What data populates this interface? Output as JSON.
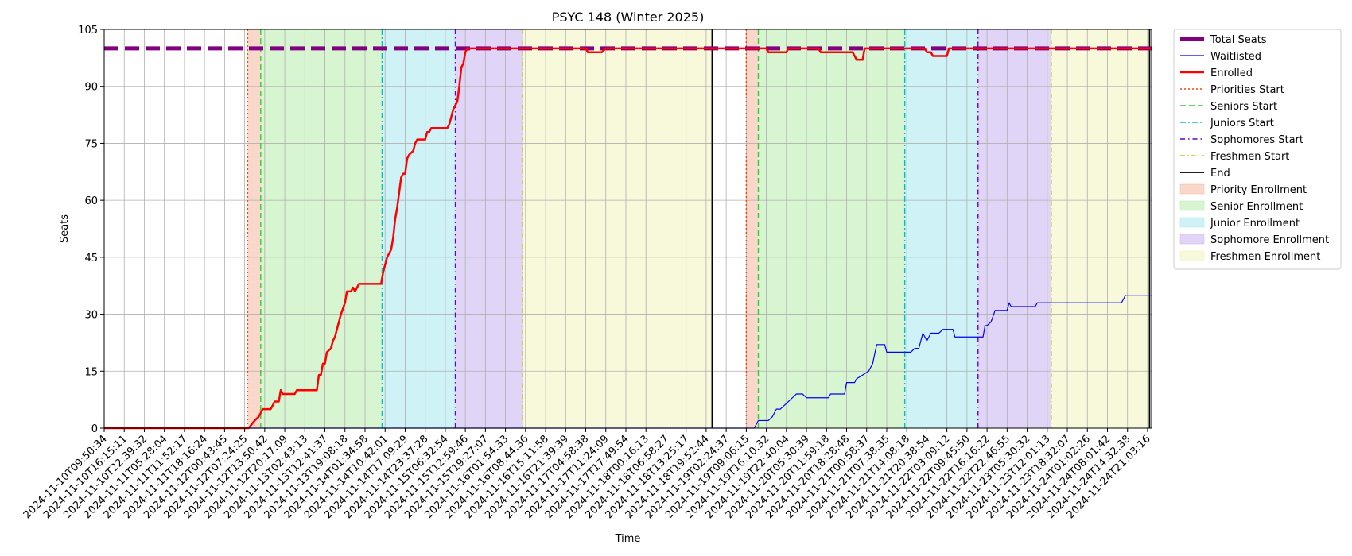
{
  "chart_data": {
    "type": "line",
    "title": "PSYC 148 (Winter 2025)",
    "xlabel": "Time",
    "ylabel": "Seats",
    "ylim": [
      0,
      105
    ],
    "y_ticks": [
      0,
      15,
      30,
      45,
      60,
      75,
      90,
      105
    ],
    "grid": true,
    "legend_position": "outside-right",
    "x_tick_labels": [
      "2024-11-10T09:50:34",
      "2024-11-10T16:15:11",
      "2024-11-10T22:39:32",
      "2024-11-11T05:28:04",
      "2024-11-11T11:52:17",
      "2024-11-11T18:16:24",
      "2024-11-12T00:43:45",
      "2024-11-12T07:24:25",
      "2024-11-12T13:50:42",
      "2024-11-12T20:17:09",
      "2024-11-13T02:43:13",
      "2024-11-13T12:41:37",
      "2024-11-13T19:08:18",
      "2024-11-14T01:34:58",
      "2024-11-14T10:42:01",
      "2024-11-14T17:09:29",
      "2024-11-14T23:37:28",
      "2024-11-15T06:32:54",
      "2024-11-15T12:59:46",
      "2024-11-15T19:27:07",
      "2024-11-16T01:54:33",
      "2024-11-16T08:44:36",
      "2024-11-16T15:11:58",
      "2024-11-16T21:39:39",
      "2024-11-17T04:58:38",
      "2024-11-17T11:24:09",
      "2024-11-17T17:49:54",
      "2024-11-18T00:16:13",
      "2024-11-18T06:58:27",
      "2024-11-18T13:25:17",
      "2024-11-18T19:52:44",
      "2024-11-19T02:24:37",
      "2024-11-19T09:06:15",
      "2024-11-19T16:10:32",
      "2024-11-19T22:40:04",
      "2024-11-20T05:30:39",
      "2024-11-20T11:59:18",
      "2024-11-20T18:28:48",
      "2024-11-21T00:58:37",
      "2024-11-21T07:38:35",
      "2024-11-21T14:08:18",
      "2024-11-21T20:38:54",
      "2024-11-22T03:09:12",
      "2024-11-22T09:45:50",
      "2024-11-22T16:16:22",
      "2024-11-22T22:46:55",
      "2024-11-23T05:30:32",
      "2024-11-23T12:01:13",
      "2024-11-23T18:32:07",
      "2024-11-24T01:02:26",
      "2024-11-24T08:01:42",
      "2024-11-24T14:32:38",
      "2024-11-24T21:03:16"
    ],
    "x_domain": [
      0,
      52.2
    ],
    "series": [
      {
        "name": "Total Seats",
        "color": "#800080",
        "style": "dashed-thick",
        "points": [
          [
            0,
            100
          ],
          [
            52.2,
            100
          ]
        ]
      },
      {
        "name": "Waitlisted",
        "color": "#0000ff",
        "style": "solid-thin",
        "points": [
          [
            0,
            0
          ],
          [
            32.1,
            0
          ],
          [
            32.2,
            0
          ],
          [
            32.4,
            0
          ],
          [
            32.5,
            1
          ],
          [
            32.6,
            2
          ],
          [
            33.0,
            2
          ],
          [
            33.1,
            2
          ],
          [
            33.3,
            3
          ],
          [
            33.5,
            5
          ],
          [
            33.7,
            5
          ],
          [
            33.9,
            6
          ],
          [
            34.1,
            7
          ],
          [
            34.3,
            8
          ],
          [
            34.5,
            9
          ],
          [
            34.8,
            9
          ],
          [
            35.0,
            8
          ],
          [
            36.1,
            8
          ],
          [
            36.2,
            9
          ],
          [
            36.9,
            9
          ],
          [
            37.0,
            12
          ],
          [
            37.4,
            12
          ],
          [
            37.5,
            13
          ],
          [
            37.8,
            14
          ],
          [
            38.1,
            15
          ],
          [
            38.3,
            17
          ],
          [
            38.5,
            22
          ],
          [
            38.9,
            22
          ],
          [
            39.0,
            20
          ],
          [
            40.2,
            20
          ],
          [
            40.4,
            21
          ],
          [
            40.6,
            21
          ],
          [
            40.8,
            25
          ],
          [
            40.9,
            24
          ],
          [
            41.0,
            23
          ],
          [
            41.2,
            25
          ],
          [
            41.6,
            25
          ],
          [
            41.8,
            26
          ],
          [
            42.3,
            26
          ],
          [
            42.4,
            24
          ],
          [
            43.8,
            24
          ],
          [
            43.9,
            27
          ],
          [
            44.0,
            27
          ],
          [
            44.2,
            28
          ],
          [
            44.4,
            31
          ],
          [
            45.0,
            31
          ],
          [
            45.1,
            33
          ],
          [
            45.2,
            32
          ],
          [
            46.4,
            32
          ],
          [
            46.5,
            33
          ],
          [
            50.7,
            33
          ],
          [
            50.9,
            35
          ],
          [
            52.2,
            35
          ]
        ]
      },
      {
        "name": "Enrolled",
        "color": "#ff0000",
        "style": "solid-thick",
        "points": [
          [
            0,
            0
          ],
          [
            7.2,
            0
          ],
          [
            7.5,
            2
          ],
          [
            7.7,
            3
          ],
          [
            7.9,
            5
          ],
          [
            8.3,
            5
          ],
          [
            8.4,
            6
          ],
          [
            8.5,
            7
          ],
          [
            8.7,
            7
          ],
          [
            8.8,
            10
          ],
          [
            8.9,
            9
          ],
          [
            9.5,
            9
          ],
          [
            9.6,
            10
          ],
          [
            10.6,
            10
          ],
          [
            10.7,
            14
          ],
          [
            10.8,
            14
          ],
          [
            10.9,
            17
          ],
          [
            11.0,
            17
          ],
          [
            11.1,
            20
          ],
          [
            11.3,
            21
          ],
          [
            11.4,
            23
          ],
          [
            11.5,
            24
          ],
          [
            11.6,
            26
          ],
          [
            11.7,
            28
          ],
          [
            11.8,
            30
          ],
          [
            12.0,
            33
          ],
          [
            12.1,
            36
          ],
          [
            12.3,
            36
          ],
          [
            12.4,
            37
          ],
          [
            12.5,
            36
          ],
          [
            12.6,
            37
          ],
          [
            12.7,
            38
          ],
          [
            13.8,
            38
          ],
          [
            13.9,
            41
          ],
          [
            14.0,
            43
          ],
          [
            14.1,
            45
          ],
          [
            14.3,
            47
          ],
          [
            14.4,
            50
          ],
          [
            14.5,
            55
          ],
          [
            14.6,
            58
          ],
          [
            14.7,
            62
          ],
          [
            14.8,
            66
          ],
          [
            14.9,
            67
          ],
          [
            15.0,
            67
          ],
          [
            15.1,
            71
          ],
          [
            15.2,
            72
          ],
          [
            15.4,
            73
          ],
          [
            15.5,
            75
          ],
          [
            15.6,
            76
          ],
          [
            16.0,
            76
          ],
          [
            16.1,
            78
          ],
          [
            16.2,
            78
          ],
          [
            16.3,
            79
          ],
          [
            17.1,
            79
          ],
          [
            17.2,
            80
          ],
          [
            17.3,
            82
          ],
          [
            17.4,
            84
          ],
          [
            17.6,
            86
          ],
          [
            17.7,
            90
          ],
          [
            17.8,
            95
          ],
          [
            17.9,
            96
          ],
          [
            18.0,
            99
          ],
          [
            18.1,
            100
          ],
          [
            24.0,
            100
          ],
          [
            24.1,
            99
          ],
          [
            24.8,
            99
          ],
          [
            25.0,
            100
          ],
          [
            32.2,
            100
          ],
          [
            33.0,
            100
          ],
          [
            33.1,
            99
          ],
          [
            34.0,
            99
          ],
          [
            34.1,
            100
          ],
          [
            35.6,
            100
          ],
          [
            35.7,
            99
          ],
          [
            37.3,
            99
          ],
          [
            37.4,
            98
          ],
          [
            37.5,
            97
          ],
          [
            37.8,
            97
          ],
          [
            37.9,
            100
          ],
          [
            39.9,
            100
          ],
          [
            40.0,
            100
          ],
          [
            40.9,
            100
          ],
          [
            41.0,
            99
          ],
          [
            41.2,
            99
          ],
          [
            41.3,
            98
          ],
          [
            42.0,
            98
          ],
          [
            42.1,
            100
          ],
          [
            52.2,
            100
          ]
        ]
      }
    ],
    "markers": [
      {
        "name": "Priorities Start",
        "x": 7.15,
        "color": "#ff4500",
        "dash": "2,3"
      },
      {
        "name": "Seniors Start",
        "x": 7.8,
        "color": "#32cd32",
        "dash": "7,4"
      },
      {
        "name": "Juniors Start",
        "x": 13.85,
        "color": "#00bfbf",
        "dash": "7,3,2,3"
      },
      {
        "name": "Sophomores Start",
        "x": 17.5,
        "color": "#6600cc",
        "dash": "6,4,1.5,4"
      },
      {
        "name": "Freshmen Start",
        "x": 20.85,
        "color": "#d4c400",
        "dash": "6,3,1.5,3"
      },
      {
        "name": "End",
        "x": 30.3,
        "color": "#000000",
        "dash": ""
      },
      {
        "name": "Priorities Start",
        "x": 32.0,
        "color": "#ff4500",
        "dash": "2,3"
      },
      {
        "name": "Seniors Start",
        "x": 32.6,
        "color": "#32cd32",
        "dash": "7,4"
      },
      {
        "name": "Juniors Start",
        "x": 39.9,
        "color": "#00bfbf",
        "dash": "7,3,2,3"
      },
      {
        "name": "Sophomores Start",
        "x": 43.55,
        "color": "#6600cc",
        "dash": "6,4,1.5,4"
      },
      {
        "name": "Freshmen Start",
        "x": 47.2,
        "color": "#d4c400",
        "dash": "6,3,1.5,3"
      },
      {
        "name": "End",
        "x": 52.1,
        "color": "#000000",
        "dash": ""
      }
    ],
    "periods": [
      {
        "name": "Priority Enrollment",
        "from": 7.15,
        "to": 7.8,
        "color": "#f4b8a0"
      },
      {
        "name": "Senior Enrollment",
        "from": 7.8,
        "to": 13.85,
        "color": "#b7ecaa"
      },
      {
        "name": "Junior Enrollment",
        "from": 13.85,
        "to": 17.5,
        "color": "#a6e8ef"
      },
      {
        "name": "Sophomore Enrollment",
        "from": 17.5,
        "to": 20.85,
        "color": "#c7b2ef"
      },
      {
        "name": "Freshmen Enrollment",
        "from": 20.85,
        "to": 30.3,
        "color": "#f3f3bb"
      },
      {
        "name": "Priority Enrollment",
        "from": 32.0,
        "to": 32.6,
        "color": "#f4b8a0"
      },
      {
        "name": "Senior Enrollment",
        "from": 32.6,
        "to": 39.9,
        "color": "#b7ecaa"
      },
      {
        "name": "Junior Enrollment",
        "from": 39.9,
        "to": 43.55,
        "color": "#a6e8ef"
      },
      {
        "name": "Sophomore Enrollment",
        "from": 43.55,
        "to": 47.2,
        "color": "#c7b2ef"
      },
      {
        "name": "Freshmen Enrollment",
        "from": 47.2,
        "to": 52.1,
        "color": "#f3f3bb"
      }
    ],
    "legend": [
      {
        "label": "Total Seats",
        "kind": "line",
        "color": "#800080",
        "width": 5,
        "dash": ""
      },
      {
        "label": "Waitlisted",
        "kind": "line",
        "color": "#0000ff",
        "width": 1.2,
        "dash": ""
      },
      {
        "label": "Enrolled",
        "kind": "line",
        "color": "#ff0000",
        "width": 2.5,
        "dash": ""
      },
      {
        "label": "Priorities Start",
        "kind": "line",
        "color": "#ff4500",
        "width": 1.5,
        "dash": "2,3"
      },
      {
        "label": "Seniors Start",
        "kind": "line",
        "color": "#32cd32",
        "width": 1.5,
        "dash": "7,4"
      },
      {
        "label": "Juniors Start",
        "kind": "line",
        "color": "#00bfbf",
        "width": 1.5,
        "dash": "7,3,2,3"
      },
      {
        "label": "Sophomores Start",
        "kind": "line",
        "color": "#6600cc",
        "width": 1.5,
        "dash": "6,4,1.5,4"
      },
      {
        "label": "Freshmen Start",
        "kind": "line",
        "color": "#d4c400",
        "width": 1.5,
        "dash": "6,3,1.5,3"
      },
      {
        "label": "End",
        "kind": "line",
        "color": "#000000",
        "width": 1.8,
        "dash": ""
      },
      {
        "label": "Priority Enrollment",
        "kind": "patch",
        "color": "#f4b8a0"
      },
      {
        "label": "Senior Enrollment",
        "kind": "patch",
        "color": "#b7ecaa"
      },
      {
        "label": "Junior Enrollment",
        "kind": "patch",
        "color": "#a6e8ef"
      },
      {
        "label": "Sophomore Enrollment",
        "kind": "patch",
        "color": "#c7b2ef"
      },
      {
        "label": "Freshmen Enrollment",
        "kind": "patch",
        "color": "#f3f3bb"
      }
    ]
  }
}
